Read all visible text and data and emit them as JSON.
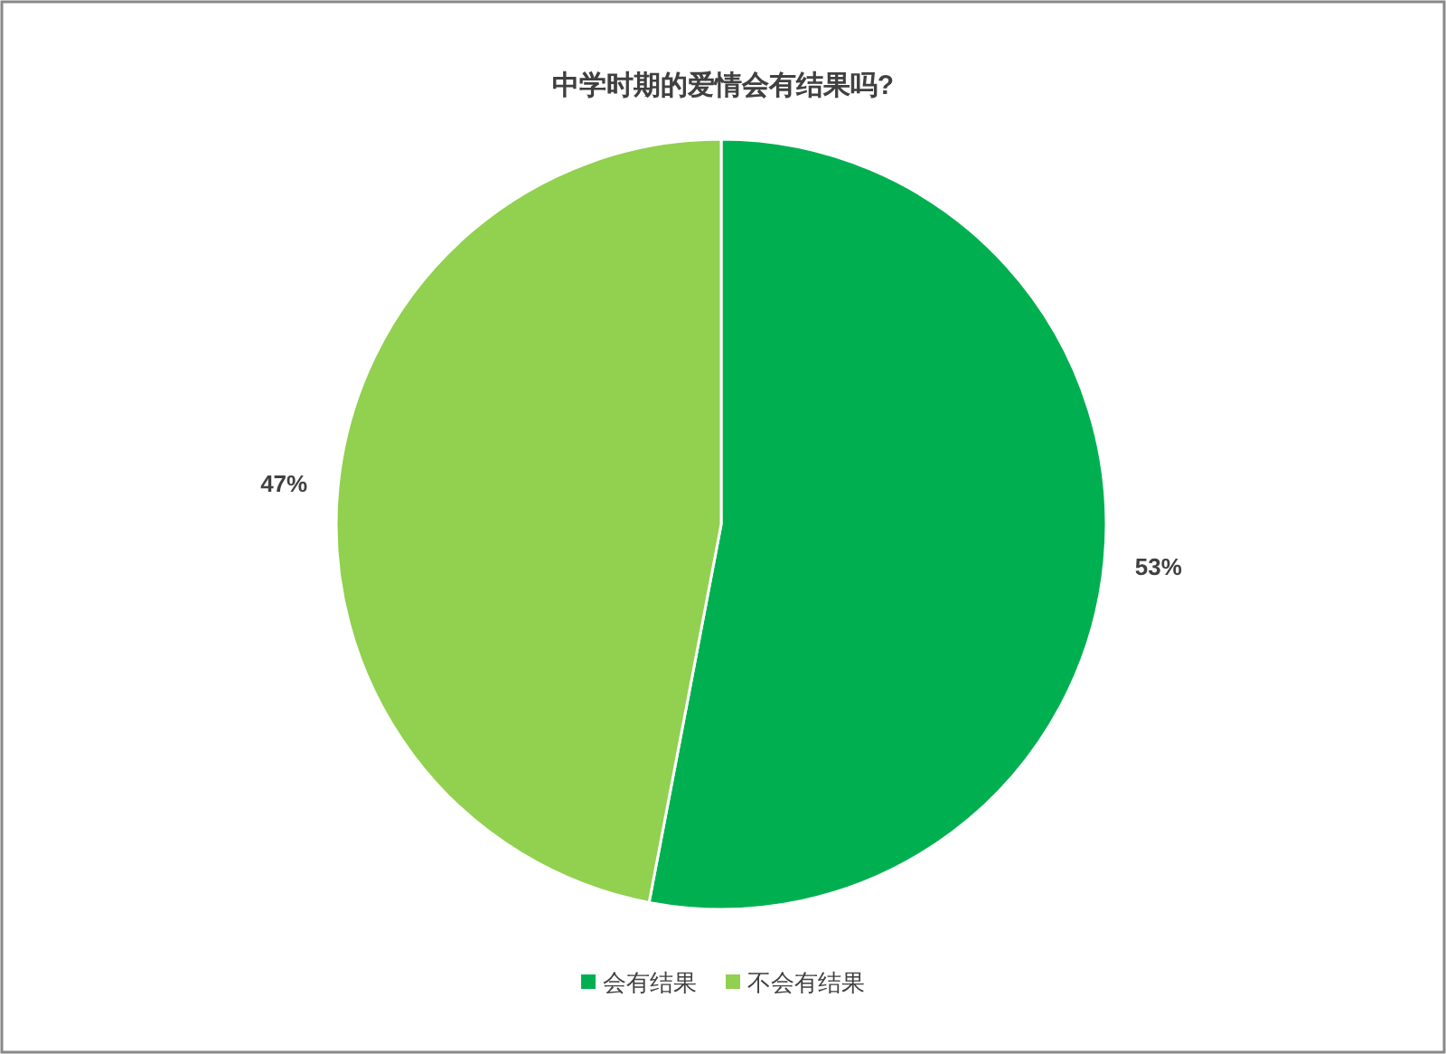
{
  "chart_data": {
    "type": "pie",
    "title": "中学时期的爱情会有结果吗?",
    "categories": [
      "会有结果",
      "不会有结果"
    ],
    "values": [
      53,
      47
    ],
    "colors": [
      "#00b050",
      "#92d050"
    ],
    "value_labels": [
      "53%",
      "47%"
    ],
    "legend": "bottom"
  }
}
